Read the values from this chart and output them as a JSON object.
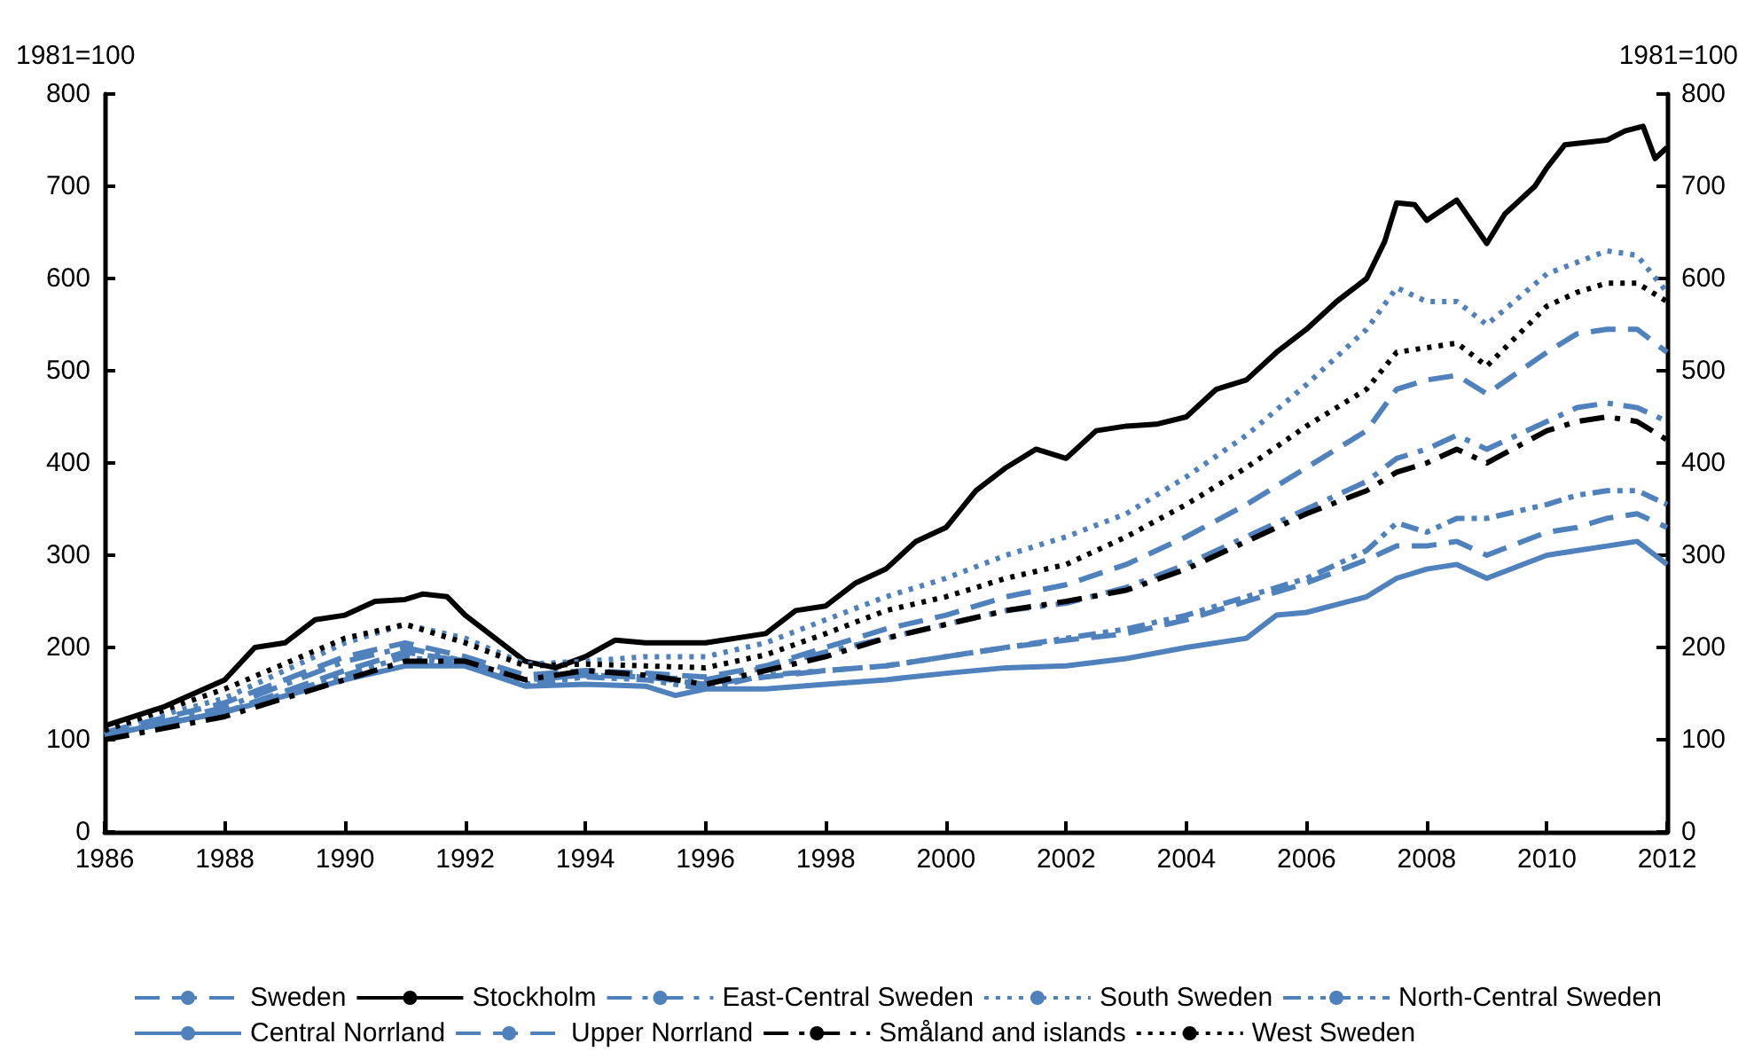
{
  "chart_data": {
    "type": "line",
    "ylabel": "1981=100",
    "y2label": "1981=100",
    "xlim": [
      1986,
      2012
    ],
    "xticks": [
      1986,
      1988,
      1990,
      1992,
      1994,
      1996,
      1998,
      2000,
      2002,
      2004,
      2006,
      2008,
      2010,
      2012
    ],
    "ylim": [
      0,
      800
    ],
    "yticks": [
      0,
      100,
      200,
      300,
      400,
      500,
      600,
      700,
      800
    ],
    "y2lim": [
      0,
      800
    ],
    "y2ticks": [
      0,
      100,
      200,
      300,
      400,
      500,
      600,
      700,
      800
    ],
    "grid": false,
    "legend": "bottom",
    "marker": "none",
    "series": [
      {
        "name": "Sweden",
        "color": "#4f81bd",
        "line_style": "dashed",
        "x": [
          1986,
          1988,
          1990,
          1991,
          1992,
          1993,
          1994,
          1995,
          1996,
          1997,
          1998,
          1999,
          2000,
          2001,
          2002,
          2003,
          2004,
          2005,
          2006,
          2007,
          2007.5,
          2008,
          2008.5,
          2009,
          2010,
          2010.5,
          2011,
          2011.5,
          2012
        ],
        "values": [
          108,
          140,
          190,
          205,
          190,
          170,
          175,
          172,
          168,
          180,
          200,
          220,
          235,
          255,
          268,
          290,
          320,
          355,
          395,
          435,
          480,
          490,
          495,
          475,
          520,
          540,
          545,
          545,
          520
        ]
      },
      {
        "name": "Stockholm",
        "color": "#000000",
        "line_style": "solid",
        "x": [
          1986,
          1987,
          1988,
          1988.5,
          1989,
          1989.5,
          1990,
          1990.5,
          1991,
          1991.3,
          1991.7,
          1992,
          1992.5,
          1993,
          1993.5,
          1994,
          1994.5,
          1995,
          1996,
          1997,
          1997.5,
          1998,
          1998.5,
          1999,
          1999.5,
          2000,
          2000.5,
          2001,
          2001.5,
          2002,
          2002.5,
          2003,
          2003.5,
          2004,
          2004.5,
          2005,
          2005.5,
          2006,
          2006.5,
          2007,
          2007.3,
          2007.5,
          2007.8,
          2008,
          2008.5,
          2009,
          2009.3,
          2009.8,
          2010,
          2010.3,
          2011,
          2011.3,
          2011.6,
          2011.8,
          2012
        ],
        "values": [
          115,
          136,
          165,
          200,
          205,
          230,
          235,
          250,
          252,
          258,
          255,
          235,
          210,
          185,
          178,
          190,
          208,
          205,
          205,
          215,
          240,
          245,
          270,
          285,
          315,
          330,
          370,
          395,
          415,
          405,
          435,
          440,
          442,
          450,
          480,
          490,
          520,
          545,
          575,
          600,
          640,
          682,
          680,
          663,
          685,
          638,
          670,
          700,
          720,
          745,
          750,
          760,
          765,
          730,
          742
        ]
      },
      {
        "name": "East-Central Sweden",
        "color": "#4f81bd",
        "line_style": "dashdot",
        "x": [
          1986,
          1988,
          1990,
          1991,
          1992,
          1993,
          1994,
          1995,
          1996,
          1997,
          1998,
          1999,
          2000,
          2001,
          2002,
          2003,
          2004,
          2005,
          2006,
          2007,
          2007.5,
          2008,
          2008.5,
          2009,
          2010,
          2010.5,
          2011,
          2011.5,
          2012
        ],
        "values": [
          105,
          135,
          185,
          200,
          185,
          165,
          170,
          168,
          165,
          178,
          195,
          210,
          225,
          240,
          248,
          265,
          290,
          320,
          350,
          380,
          405,
          415,
          430,
          415,
          445,
          460,
          465,
          460,
          445
        ]
      },
      {
        "name": "South Sweden",
        "color": "#4f81bd",
        "line_style": "dotted",
        "x": [
          1986,
          1988,
          1990,
          1991,
          1992,
          1993,
          1994,
          1995,
          1996,
          1997,
          1998,
          1999,
          2000,
          2001,
          2002,
          2003,
          2004,
          2005,
          2006,
          2007,
          2007.5,
          2008,
          2008.5,
          2009,
          2010,
          2011,
          2011.5,
          2012
        ],
        "values": [
          110,
          145,
          205,
          225,
          210,
          182,
          185,
          190,
          190,
          205,
          230,
          255,
          275,
          300,
          320,
          345,
          385,
          430,
          485,
          545,
          590,
          575,
          575,
          550,
          605,
          630,
          625,
          585
        ]
      },
      {
        "name": "North-Central Sweden",
        "color": "#4f81bd",
        "line_style": "dashdotdot",
        "x": [
          1986,
          1988,
          1990,
          1991,
          1992,
          1993,
          1994,
          1995,
          1996,
          1997,
          1998,
          1999,
          2000,
          2001,
          2002,
          2003,
          2004,
          2005,
          2006,
          2007,
          2007.5,
          2008,
          2008.5,
          2009,
          2010,
          2010.5,
          2011,
          2011.5,
          2012
        ],
        "values": [
          105,
          130,
          170,
          190,
          180,
          160,
          168,
          165,
          155,
          170,
          175,
          180,
          190,
          200,
          210,
          220,
          235,
          255,
          275,
          305,
          335,
          325,
          340,
          340,
          355,
          365,
          370,
          370,
          355
        ]
      },
      {
        "name": "Central Norrland",
        "color": "#4f81bd",
        "line_style": "solid",
        "x": [
          1986,
          1988,
          1990,
          1991,
          1992,
          1993,
          1994,
          1995,
          1995.5,
          1996,
          1997,
          1998,
          1999,
          2000,
          2001,
          2002,
          2003,
          2004,
          2005,
          2005.5,
          2006,
          2007,
          2007.5,
          2008,
          2008.5,
          2009,
          2010,
          2010.5,
          2011,
          2011.5,
          2012
        ],
        "values": [
          105,
          130,
          165,
          180,
          180,
          158,
          160,
          158,
          148,
          155,
          155,
          160,
          165,
          172,
          178,
          180,
          188,
          200,
          210,
          235,
          238,
          255,
          275,
          285,
          290,
          275,
          300,
          305,
          310,
          315,
          290
        ]
      },
      {
        "name": "Upper Norrland",
        "color": "#4f81bd",
        "line_style": "dashed",
        "x": [
          1986,
          1988,
          1990,
          1991,
          1992,
          1993,
          1994,
          1995,
          1996,
          1997,
          1998,
          1999,
          2000,
          2001,
          2002,
          2003,
          2004,
          2005,
          2006,
          2007,
          2007.5,
          2008,
          2008.5,
          2009,
          2010,
          2010.5,
          2011,
          2011.5,
          2012
        ],
        "values": [
          105,
          130,
          175,
          195,
          185,
          165,
          170,
          168,
          160,
          168,
          175,
          180,
          190,
          200,
          208,
          215,
          230,
          250,
          270,
          295,
          310,
          310,
          315,
          300,
          325,
          330,
          340,
          345,
          330
        ]
      },
      {
        "name": "Småland and islands",
        "color": "#000000",
        "line_style": "dashdot",
        "x": [
          1986,
          1988,
          1990,
          1991,
          1992,
          1993,
          1994,
          1995,
          1996,
          1997,
          1998,
          1999,
          2000,
          2001,
          2002,
          2003,
          2004,
          2005,
          2006,
          2007,
          2007.5,
          2008,
          2008.5,
          2009,
          2010,
          2010.5,
          2011,
          2011.5,
          2012
        ],
        "values": [
          100,
          125,
          165,
          185,
          185,
          165,
          175,
          170,
          160,
          175,
          190,
          210,
          225,
          240,
          250,
          262,
          285,
          315,
          345,
          370,
          390,
          400,
          415,
          400,
          435,
          445,
          450,
          445,
          425
        ]
      },
      {
        "name": "West Sweden",
        "color": "#000000",
        "line_style": "dotted",
        "x": [
          1986,
          1988,
          1990,
          1991,
          1992,
          1993,
          1994,
          1995,
          1996,
          1997,
          1998,
          1999,
          2000,
          2001,
          2002,
          2003,
          2004,
          2005,
          2006,
          2007,
          2007.5,
          2008,
          2008.5,
          2009,
          2010,
          2010.5,
          2011,
          2011.5,
          2012
        ],
        "values": [
          110,
          155,
          210,
          225,
          205,
          180,
          182,
          180,
          178,
          192,
          215,
          240,
          255,
          275,
          290,
          320,
          355,
          395,
          440,
          480,
          520,
          525,
          530,
          505,
          570,
          585,
          595,
          595,
          575
        ]
      }
    ]
  }
}
